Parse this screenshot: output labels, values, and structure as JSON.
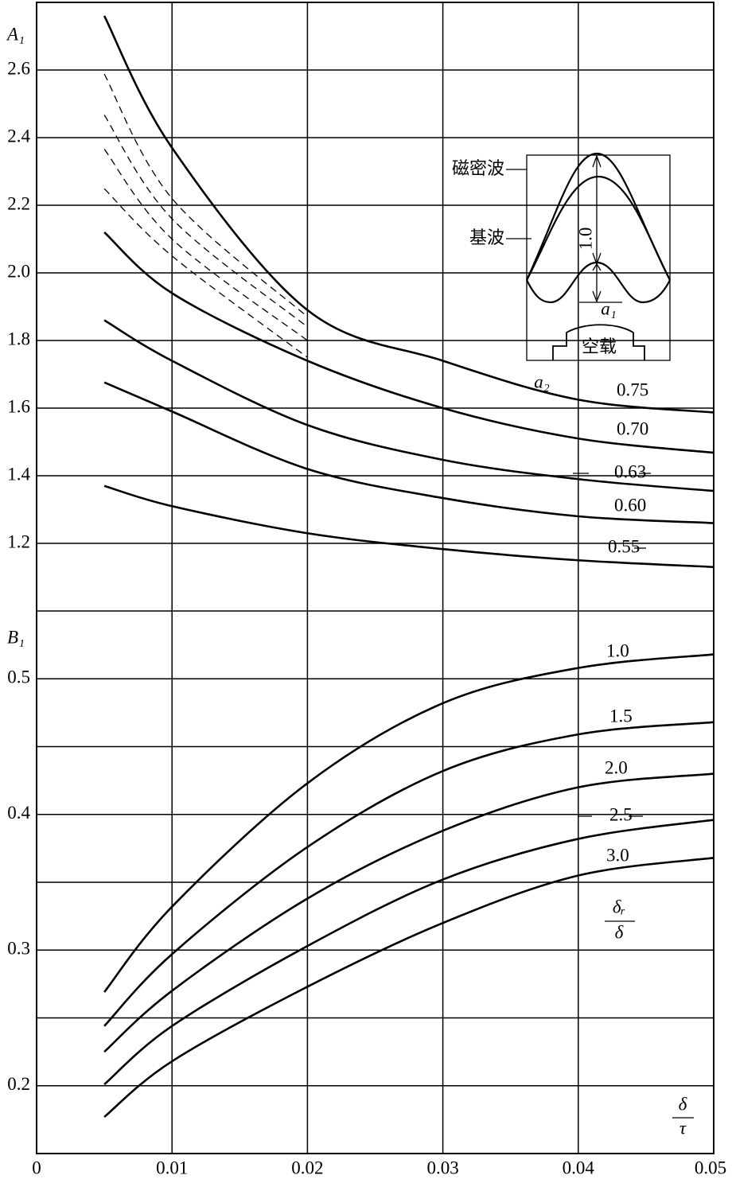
{
  "chart_data": [
    {
      "type": "line",
      "y_label": "A₁",
      "curve_param_label": "a₂",
      "xlim": [
        0,
        0.05
      ],
      "ylim": [
        1.0,
        2.8
      ],
      "yticks": [
        1.2,
        1.4,
        1.6,
        1.8,
        {
          "value": 2,
          "label": "2.0"
        },
        2.2,
        2.4,
        2.6
      ],
      "grid": true,
      "x": [
        0.005,
        0.01,
        0.02,
        0.03,
        0.04,
        0.05
      ],
      "series": [
        {
          "name": "0.75",
          "color": "#000000",
          "values": [
            2.76,
            2.37,
            1.89,
            1.74,
            1.625,
            1.587
          ]
        },
        {
          "name": "0.70",
          "color": "#000000",
          "values": [
            2.12,
            1.94,
            1.74,
            1.6,
            1.51,
            1.468
          ]
        },
        {
          "name": "0.63",
          "color": "#000000",
          "values": [
            1.86,
            1.74,
            1.55,
            1.447,
            1.39,
            1.355
          ]
        },
        {
          "name": "0.60",
          "color": "#000000",
          "values": [
            1.676,
            1.59,
            1.42,
            1.334,
            1.28,
            1.26
          ]
        },
        {
          "name": "0.55",
          "color": "#000000",
          "values": [
            1.37,
            1.31,
            1.23,
            1.183,
            1.15,
            1.13
          ]
        },
        {
          "color": "#000000",
          "linestyle": "dashed",
          "values": [
            2.588,
            2.22,
            1.87,
            null,
            null,
            null
          ]
        },
        {
          "color": "#000000",
          "linestyle": "dashed",
          "values": [
            2.467,
            2.16,
            1.84,
            null,
            null,
            null
          ]
        },
        {
          "color": "#000000",
          "linestyle": "dashed",
          "values": [
            2.366,
            2.1,
            1.8,
            null,
            null,
            null
          ]
        },
        {
          "color": "#000000",
          "linestyle": "dashed",
          "values": [
            2.249,
            2.05,
            1.75,
            null,
            null,
            null
          ]
        }
      ]
    },
    {
      "type": "line",
      "y_label": "B₁",
      "curve_param_label": {
        "numerator": "δᵣ",
        "denominator": "δ"
      },
      "x_label": {
        "numerator": "δ",
        "denominator": "τ"
      },
      "xlim": [
        0,
        0.05
      ],
      "ylim": [
        0.15,
        0.55
      ],
      "xticks": [
        0,
        0.01,
        0.02,
        0.03,
        0.04,
        0.05
      ],
      "yticks": [
        0.2,
        0.3,
        0.4,
        0.5
      ],
      "minor_gridlines": [
        0.25,
        0.35,
        0.45
      ],
      "grid": true,
      "x": [
        0.005,
        0.01,
        0.02,
        0.03,
        0.04,
        0.05
      ],
      "series": [
        {
          "name": "1.0",
          "color": "#000000",
          "values": [
            0.269,
            0.332,
            0.423,
            0.482,
            0.508,
            0.518
          ]
        },
        {
          "name": "1.5",
          "color": "#000000",
          "values": [
            0.244,
            0.297,
            0.376,
            0.432,
            0.459,
            0.468
          ]
        },
        {
          "name": "2.0",
          "color": "#000000",
          "values": [
            0.225,
            0.27,
            0.338,
            0.388,
            0.42,
            0.43
          ]
        },
        {
          "name": "2.5",
          "color": "#000000",
          "values": [
            0.201,
            0.244,
            0.303,
            0.352,
            0.382,
            0.396
          ]
        },
        {
          "name": "3.0",
          "color": "#000000",
          "values": [
            0.177,
            0.218,
            0.273,
            0.32,
            0.355,
            0.368
          ]
        }
      ]
    }
  ],
  "inset": {
    "peak_wave": "磁密波",
    "fundamental": "基波",
    "amplitude": "1.0",
    "ratio": "a₁",
    "condition": "空载"
  }
}
